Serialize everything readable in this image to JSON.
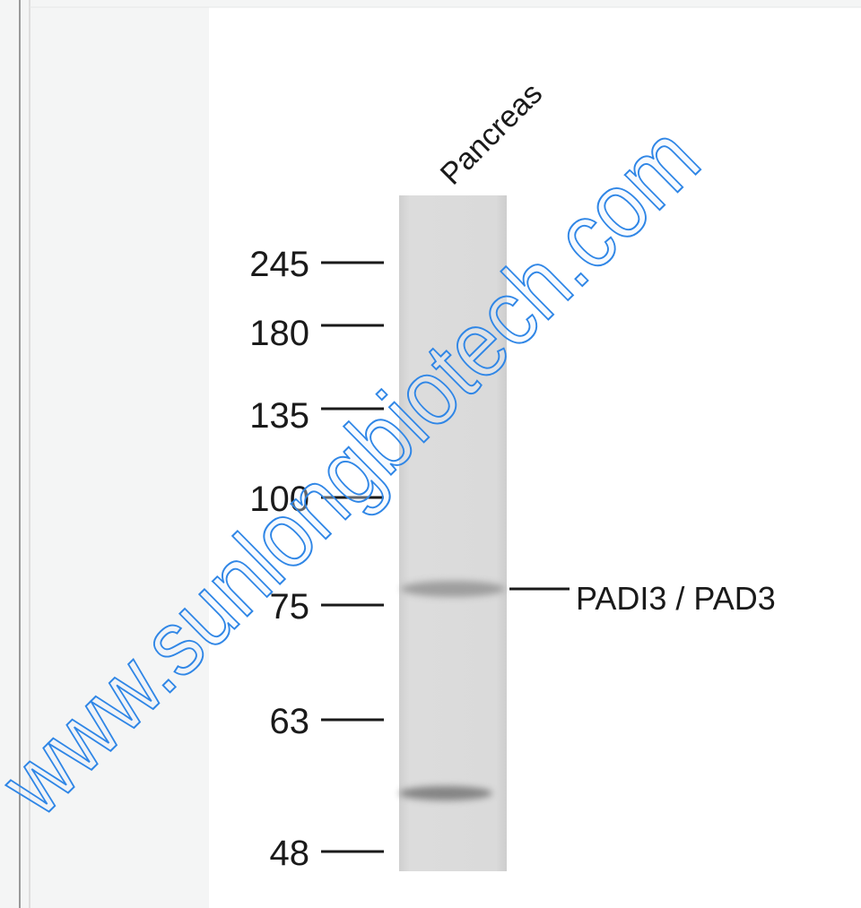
{
  "blot": {
    "lane_label": "Pancreas",
    "markers": [
      "245",
      "180",
      "135",
      "100",
      "75",
      "63",
      "48"
    ],
    "band_label": "PADI3 / PAD3"
  },
  "watermark": "www.sunlongbiotech.com"
}
